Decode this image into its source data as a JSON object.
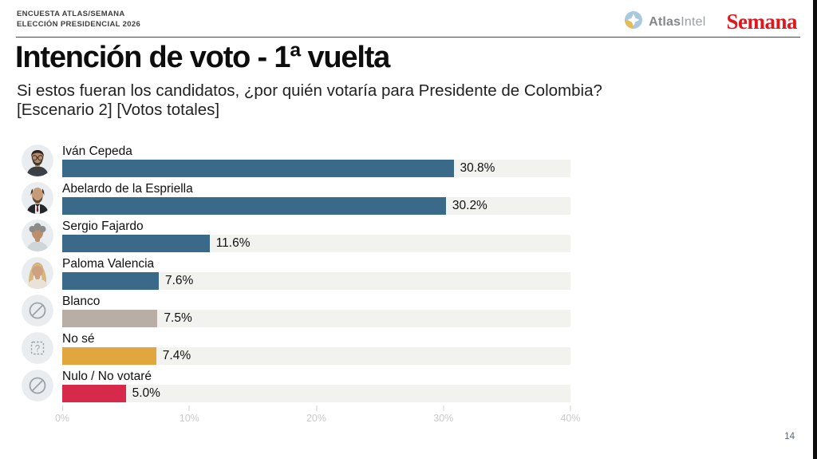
{
  "header": {
    "kicker_line1": "ENCUESTA ATLAS/SEMANA",
    "kicker_line2": "ELECCIÓN PRESIDENCIAL 2026",
    "atlas_brand_bold": "Atlas",
    "atlas_brand_light": "Intel",
    "semana_brand": "Semana"
  },
  "title": "Intención de voto - 1ª vuelta",
  "subtitle_line1": "Si estos fueran los candidatos, ¿por quién votaría para Presidente de Colombia?",
  "subtitle_line2": "[Escenario 2] [Votos totales]",
  "page_number": "14",
  "colors": {
    "candidate_bar": "#3a698a",
    "blanco_bar": "#b9aea6",
    "no_se_bar": "#e2a63e",
    "nulo_bar": "#d7294a",
    "track": "#f2f2ef",
    "semana_red": "#e1171d",
    "atlas_blue": "#a9c9df",
    "atlas_yellow": "#e3bd55"
  },
  "chart_data": {
    "type": "bar",
    "orientation": "horizontal",
    "title": "Intención de voto - 1ª vuelta",
    "subtitle": "Si estos fueran los candidatos, ¿por quién votaría para Presidente de Colombia? [Escenario 2] [Votos totales]",
    "categories": [
      "Iván Cepeda",
      "Abelardo de la Espriella",
      "Sergio Fajardo",
      "Paloma Valencia",
      "Blanco",
      "No sé",
      "Nulo / No votaré"
    ],
    "values": [
      30.8,
      30.2,
      11.6,
      7.6,
      7.5,
      7.4,
      5.0
    ],
    "value_labels": [
      "30.8%",
      "30.2%",
      "11.6%",
      "7.6%",
      "7.5%",
      "7.4%",
      "5.0%"
    ],
    "bar_colors": [
      "#3a698a",
      "#3a698a",
      "#3a698a",
      "#3a698a",
      "#b9aea6",
      "#e2a63e",
      "#d7294a"
    ],
    "row_icons": [
      "avatar-ivan-cepeda",
      "avatar-abelardo-de-la-espriella",
      "avatar-sergio-fajardo",
      "avatar-paloma-valencia",
      "blank-vote-icon",
      "question-icon",
      "null-vote-icon"
    ],
    "x_ticks": [
      "0%",
      "10%",
      "20%",
      "30%",
      "40%"
    ],
    "x_tick_values": [
      0,
      10,
      20,
      30,
      40
    ],
    "xlim": [
      0,
      40
    ],
    "xlabel": "",
    "ylabel": "",
    "grid": false,
    "legend": false
  }
}
